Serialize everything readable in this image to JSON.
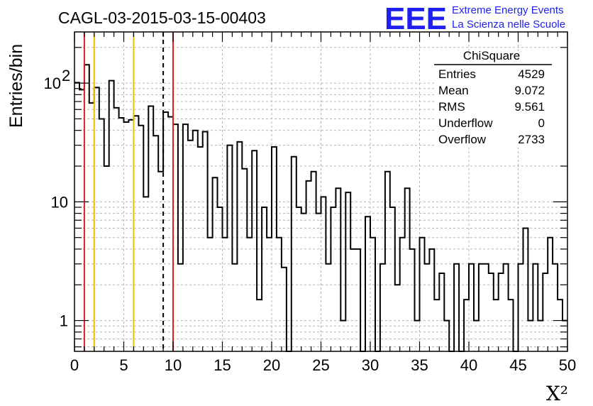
{
  "header": {
    "run_title": "CAGL-03-2015-03-15-00403",
    "logo_text": "EEE",
    "logo_line1": "Extreme Energy Events",
    "logo_line2": "La Scienza nelle Scuole"
  },
  "stats_box": {
    "title": "ChiSquare",
    "rows": [
      {
        "label": "Entries",
        "value": "4529"
      },
      {
        "label": "Mean",
        "value": "9.072"
      },
      {
        "label": "RMS",
        "value": "9.561"
      },
      {
        "label": "Underflow",
        "value": "0"
      },
      {
        "label": "Overflow",
        "value": "2733"
      }
    ]
  },
  "chart_data": {
    "type": "histogram",
    "title": "CAGL-03-2015-03-15-00403",
    "xlabel": "X²",
    "ylabel": "Entries/bin",
    "xlim": [
      0,
      50
    ],
    "ylim": [
      0.55,
      270
    ],
    "log_y": true,
    "grid": true,
    "bin_width": 0.5,
    "x_ticks": [
      "0",
      "5",
      "10",
      "15",
      "20",
      "25",
      "30",
      "35",
      "40",
      "45",
      "50"
    ],
    "y_ticks": [
      {
        "value": 1,
        "label": "1"
      },
      {
        "value": 10,
        "label": "10"
      },
      {
        "value": 100,
        "label": "10",
        "exponent": "2"
      }
    ],
    "values": [
      101,
      88,
      143,
      68,
      92,
      50,
      20,
      105,
      62,
      51,
      47,
      49,
      53,
      44,
      11,
      64,
      36,
      18,
      57,
      52,
      45,
      3,
      45,
      33,
      40,
      29,
      39,
      5,
      16,
      9,
      5,
      30,
      3,
      32,
      19,
      5,
      27,
      1.5,
      9,
      5,
      29,
      5,
      2.8,
      0.5,
      24,
      9,
      8,
      15,
      18,
      8,
      11,
      3,
      9,
      13,
      1,
      12,
      4,
      4,
      0.5,
      7.5,
      5,
      0.5,
      3,
      18,
      9,
      2,
      5,
      13,
      4,
      1,
      5,
      3,
      4,
      1.5,
      2.5,
      1,
      0.5,
      3,
      0.5,
      1.5,
      3,
      1,
      3,
      3,
      2.5,
      1.5,
      2.5,
      3,
      1.5,
      0.5,
      3,
      6,
      1,
      3,
      1,
      2.5,
      5,
      3,
      1.5,
      1
    ],
    "vertical_markers": [
      {
        "x": 1,
        "color": "#dd2020",
        "style": "solid"
      },
      {
        "x": 2,
        "color": "#f0c000",
        "style": "solid"
      },
      {
        "x": 6,
        "color": "#f0c000",
        "style": "solid"
      },
      {
        "x": 9,
        "color": "#000000",
        "style": "dashed"
      },
      {
        "x": 10,
        "color": "#dd2020",
        "style": "solid"
      }
    ],
    "colors": {
      "line": "#000000",
      "grid": "#b4b4b4",
      "logo": "#1f1ff0"
    }
  }
}
